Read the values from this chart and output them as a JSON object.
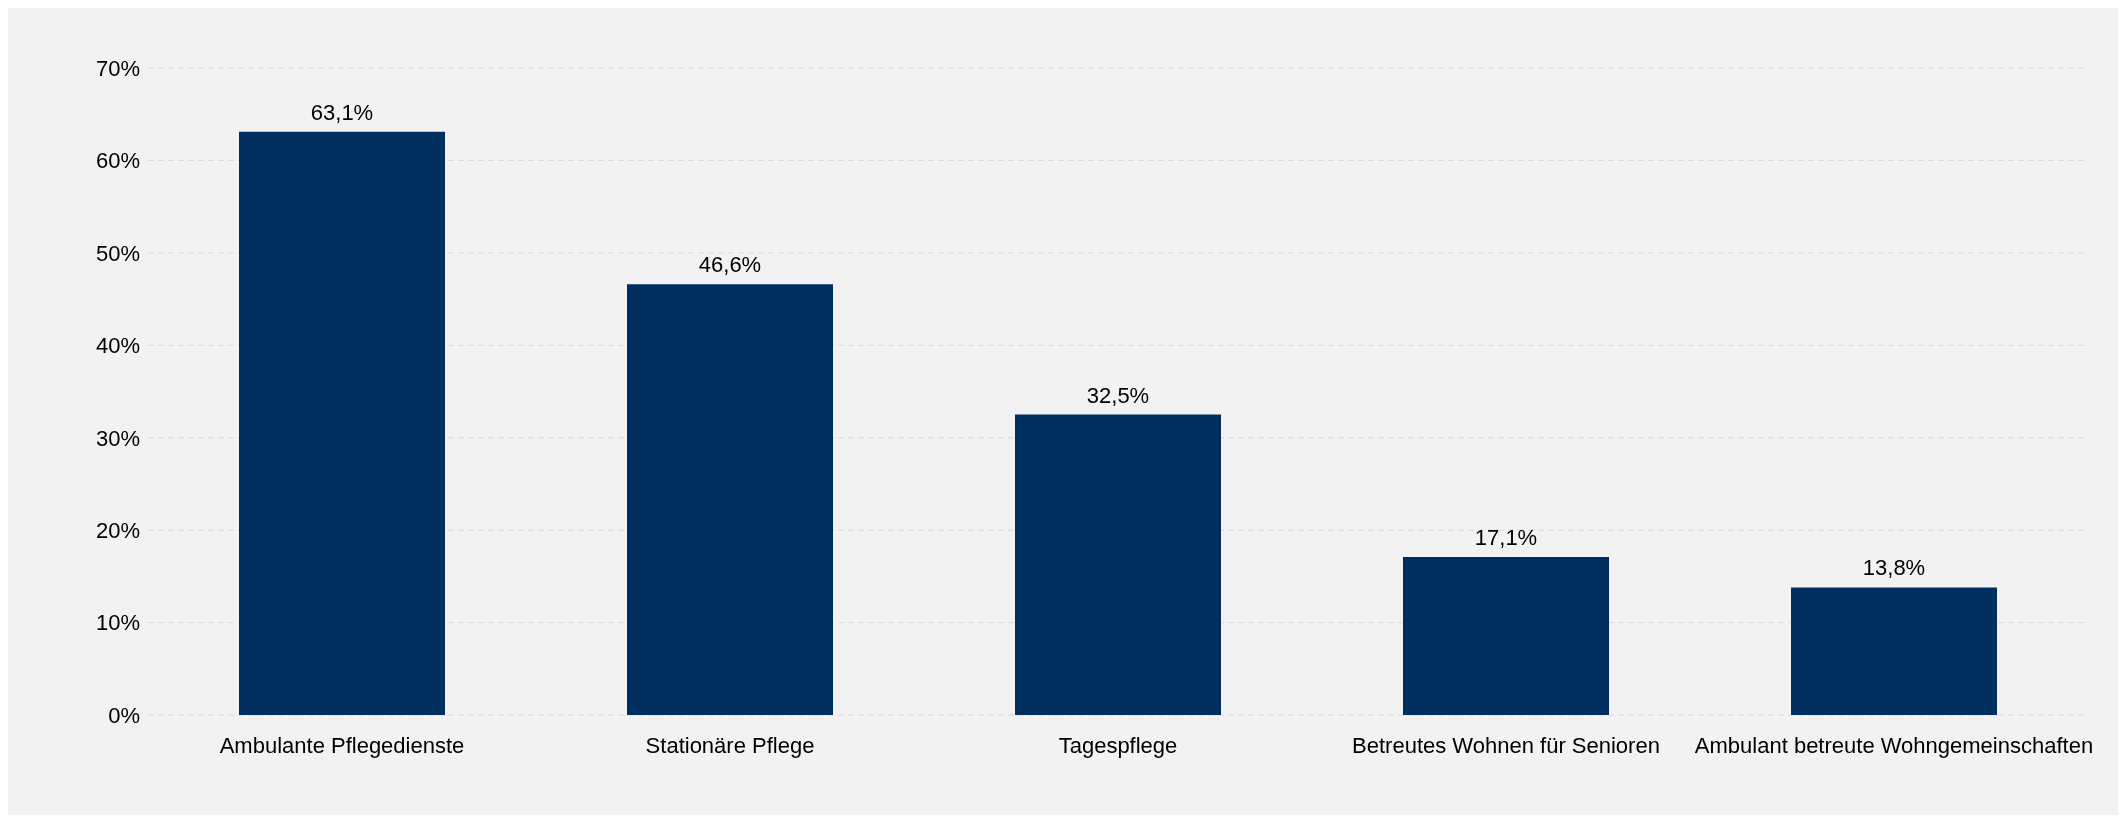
{
  "chart_data": {
    "type": "bar",
    "categories": [
      "Ambulante Pflegedienste",
      "Stationäre Pflege",
      "Tagespflege",
      "Betreutes Wohnen für Senioren",
      "Ambulant betreute Wohngemeinschaften"
    ],
    "values": [
      63.1,
      46.6,
      32.5,
      17.1,
      13.8
    ],
    "value_labels": [
      "63,1%",
      "46,6%",
      "32,5%",
      "17,1%",
      "13,8%"
    ],
    "color": "#002f5f",
    "ylim": [
      0,
      70
    ],
    "yticks": [
      {
        "value": 0,
        "label": "0%"
      },
      {
        "value": 10,
        "label": "10%"
      },
      {
        "value": 20,
        "label": "20%"
      },
      {
        "value": 30,
        "label": "30%"
      },
      {
        "value": 40,
        "label": "40%"
      },
      {
        "value": 50,
        "label": "50%"
      },
      {
        "value": 60,
        "label": "60%"
      },
      {
        "value": 70,
        "label": "70%"
      }
    ],
    "grid": "y",
    "legend": false
  }
}
